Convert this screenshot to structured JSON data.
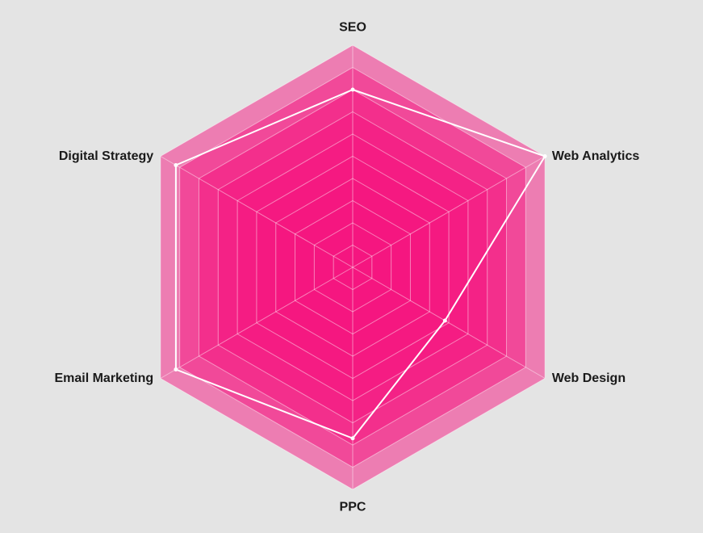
{
  "chart_data": {
    "type": "radar",
    "categories": [
      "SEO",
      "Web Analytics",
      "Web Design",
      "PPC",
      "Email Marketing",
      "Digital Strategy"
    ],
    "series": [
      {
        "values": [
          8.0,
          10.0,
          4.8,
          7.7,
          9.2,
          9.2
        ]
      }
    ],
    "range": [
      0,
      10
    ],
    "levels": 10,
    "grid": true,
    "legend": "none",
    "colors": {
      "background": "#e4e4e4",
      "fill": "#f5157f",
      "series_line": "#ffffff",
      "grid_line": "#ffffff"
    }
  }
}
